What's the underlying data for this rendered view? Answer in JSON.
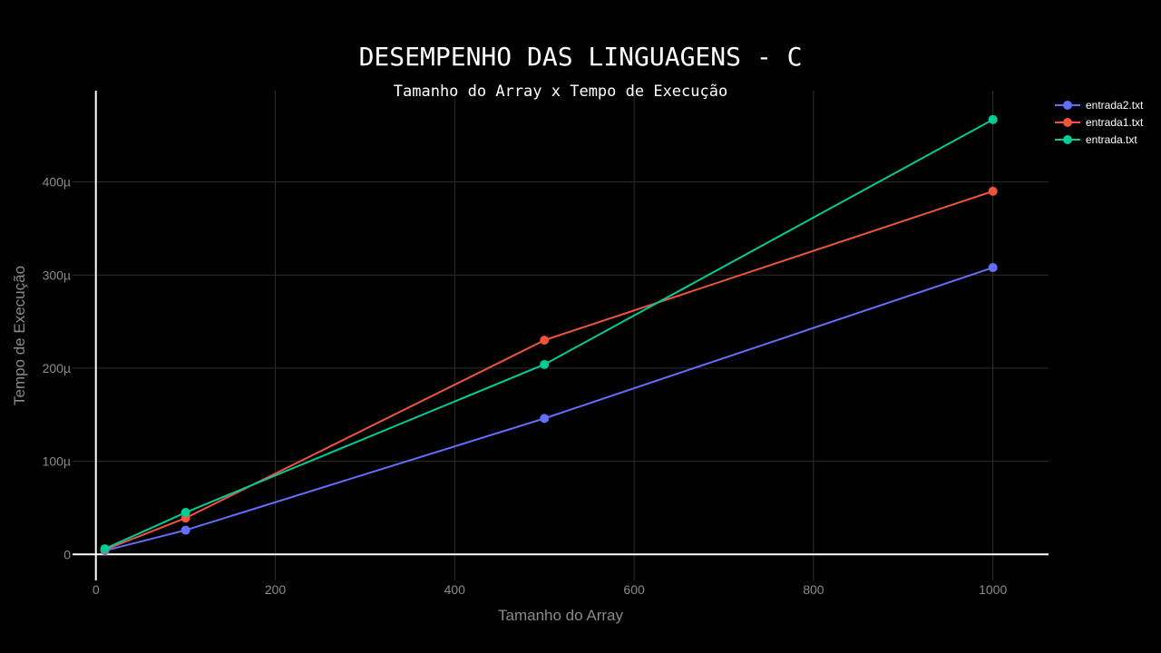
{
  "chart_data": {
    "type": "line",
    "title": "DESEMPENHO DAS LINGUAGENS - C",
    "subtitle": "Tamanho do Array x Tempo de Execução",
    "xlabel": "Tamanho do Array",
    "ylabel": "Tempo de Execução",
    "xlim": [
      -26,
      1062
    ],
    "ylim": [
      -2.8e-05,
      0.000498
    ],
    "x_ticks": [
      0,
      200,
      400,
      600,
      800,
      1000
    ],
    "x_tick_labels": [
      "0",
      "200",
      "400",
      "600",
      "800",
      "1000"
    ],
    "y_ticks": [
      0,
      0.0001,
      0.0002,
      0.0003,
      0.0004
    ],
    "y_tick_labels": [
      "0",
      "100µ",
      "200µ",
      "300µ",
      "400µ"
    ],
    "grid": true,
    "legend_position": "top-right",
    "series": [
      {
        "name": "entrada2.txt",
        "color": "#636efa",
        "x": [
          10,
          100,
          500,
          1000
        ],
        "y": [
          4e-06,
          2.6e-05,
          0.000146,
          0.000308
        ]
      },
      {
        "name": "entrada1.txt",
        "color": "#ef553b",
        "x": [
          10,
          100,
          500,
          1000
        ],
        "y": [
          5e-06,
          3.9e-05,
          0.00023,
          0.00039
        ]
      },
      {
        "name": "entrada.txt",
        "color": "#00cc96",
        "x": [
          10,
          100,
          500,
          1000
        ],
        "y": [
          6e-06,
          4.5e-05,
          0.000204,
          0.000467
        ]
      }
    ]
  }
}
